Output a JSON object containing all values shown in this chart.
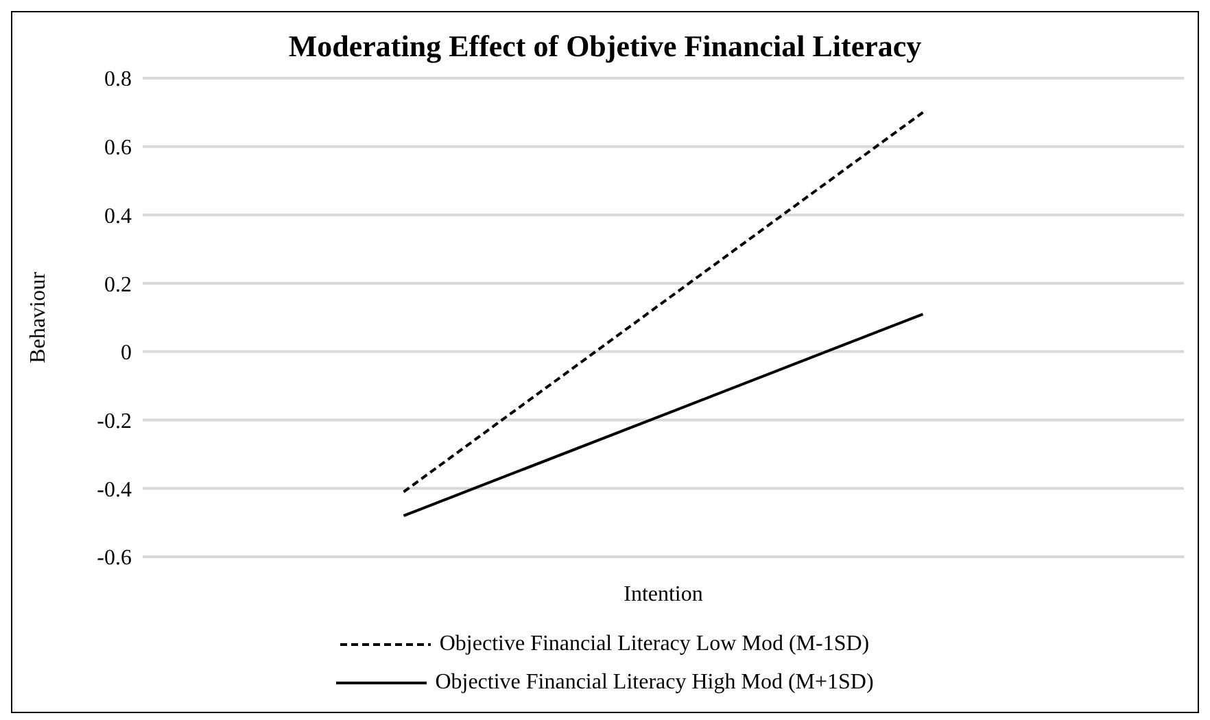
{
  "chart_data": {
    "type": "line",
    "title": "Moderating Effect of Objetive Financial Literacy",
    "xlabel": "Intention",
    "ylabel": "Behaviour",
    "categories": [
      null,
      null
    ],
    "series": [
      {
        "name": "Objective Financial Literacy Low Mod (M-1SD)",
        "color": "#000000",
        "values": [
          -0.41,
          0.7
        ],
        "line_style": "dashed"
      },
      {
        "name": "Objective Financial Literacy High Mod (M+1SD)",
        "color": "#000000",
        "values": [
          -0.48,
          0.11
        ],
        "line_style": "solid"
      }
    ],
    "ylim": [
      -0.6,
      0.8
    ],
    "yticks": [
      -0.6,
      -0.4,
      -0.2,
      0,
      0.2,
      0.4,
      0.6,
      0.8
    ],
    "grid": "y",
    "legend": "bottom",
    "tick_labels": "y",
    "marker": "none"
  }
}
